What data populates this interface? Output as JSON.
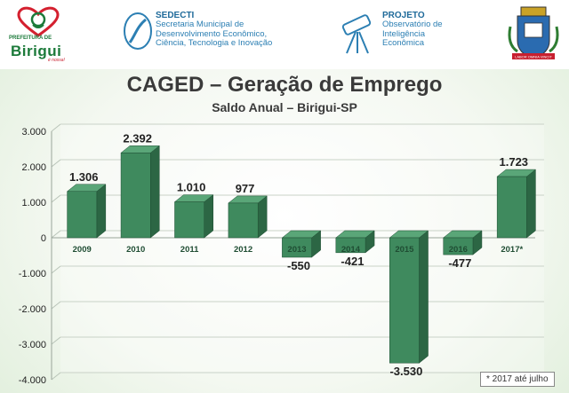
{
  "header": {
    "prefeitura": {
      "top_text": "PREFEITURA DE",
      "brand": "Birigui",
      "tagline": "é nossa!"
    },
    "sedecti": {
      "title": "SEDECTI",
      "lines": [
        "Secretaria Municipal de",
        "Desenvolvimento Econômico,",
        "Ciência, Tecnologia e Inovação"
      ]
    },
    "projeto": {
      "title": "PROJETO",
      "lines": [
        "Observatório de",
        "Inteligência",
        "Econômica"
      ]
    },
    "crest_motto": "LABOR OMNIA VINCIT"
  },
  "chart_data": {
    "type": "bar",
    "title": "CAGED – Geração de Emprego",
    "subtitle": "Saldo Anual – Birigui-SP",
    "categories": [
      "2009",
      "2010",
      "2011",
      "2012",
      "2013",
      "2014",
      "2015",
      "2016",
      "2017*"
    ],
    "values": [
      1306,
      2392,
      1010,
      977,
      -550,
      -421,
      -3530,
      -477,
      1723
    ],
    "value_labels": [
      "1.306",
      "2.392",
      "1.010",
      "977",
      "-550",
      "-421",
      "-3.530",
      "-477",
      "1.723"
    ],
    "y_ticks": [
      3000,
      2000,
      1000,
      0,
      -1000,
      -2000,
      -3000,
      -4000
    ],
    "y_tick_labels": [
      "3.000",
      "2.000",
      "1.000",
      "0",
      "-1.000",
      "-2.000",
      "-3.000",
      "-4.000"
    ],
    "ylim": [
      -4000,
      3000
    ],
    "grid": true,
    "bar_color": "#3f8a5e",
    "bar_side_color": "#2c6644",
    "bar_top_color": "#5aa678"
  },
  "footnote": "* 2017 até julho"
}
